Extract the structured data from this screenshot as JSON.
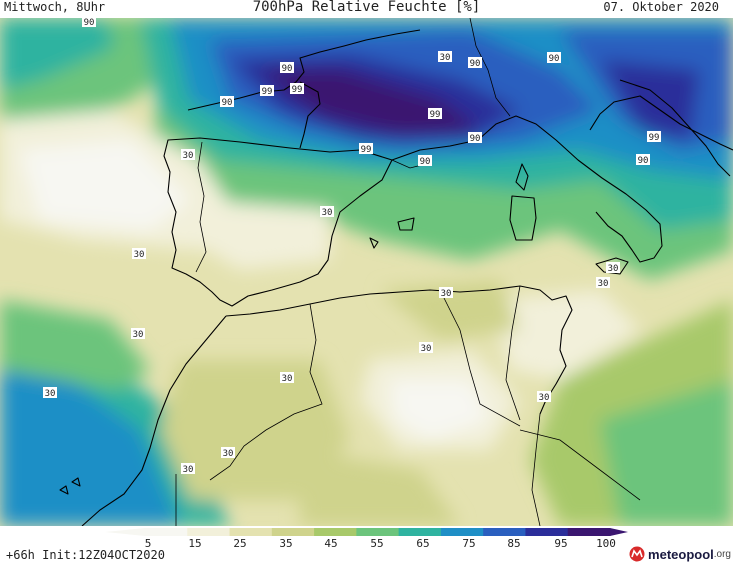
{
  "header": {
    "left": "Mittwoch, 8Uhr",
    "title": "700hPa Relative Feuchte [%]",
    "right": "07. Oktober 2020"
  },
  "colorbar": {
    "ticks": [
      "5",
      "15",
      "25",
      "35",
      "45",
      "55",
      "65",
      "75",
      "85",
      "95",
      "100"
    ],
    "colors": [
      "#f7f7f2",
      "#f2f0da",
      "#e4e2b0",
      "#cfd38c",
      "#a8c96a",
      "#6cc47c",
      "#2fb3a0",
      "#1f8fc6",
      "#2a5fbf",
      "#2b2e9a",
      "#3b1670"
    ]
  },
  "footer": {
    "run_info": "+66h Init:12Z04OCT2020",
    "logo_text": "meteopool",
    "logo_suffix": ".org"
  },
  "contour_labels": [
    {
      "id": "lbl-01",
      "text": "90"
    },
    {
      "id": "lbl-02",
      "text": "30"
    },
    {
      "id": "lbl-03",
      "text": "90"
    },
    {
      "id": "lbl-04",
      "text": "90"
    },
    {
      "id": "lbl-05",
      "text": "99"
    },
    {
      "id": "lbl-06",
      "text": "99"
    },
    {
      "id": "lbl-07",
      "text": "90"
    },
    {
      "id": "lbl-08",
      "text": "90"
    },
    {
      "id": "lbl-09",
      "text": "99"
    },
    {
      "id": "lbl-10",
      "text": "90"
    },
    {
      "id": "lbl-11",
      "text": "99"
    },
    {
      "id": "lbl-12",
      "text": "90"
    },
    {
      "id": "lbl-13",
      "text": "99"
    },
    {
      "id": "lbl-14",
      "text": "90"
    },
    {
      "id": "lbl-15",
      "text": "30"
    },
    {
      "id": "lbl-16",
      "text": "30"
    },
    {
      "id": "lbl-17",
      "text": "30"
    },
    {
      "id": "lbl-18",
      "text": "30"
    },
    {
      "id": "lbl-19",
      "text": "30"
    },
    {
      "id": "lbl-20",
      "text": "30"
    },
    {
      "id": "lbl-21",
      "text": "30"
    },
    {
      "id": "lbl-22",
      "text": "30"
    },
    {
      "id": "lbl-23",
      "text": "30"
    },
    {
      "id": "lbl-24",
      "text": "30"
    },
    {
      "id": "lbl-25",
      "text": "30"
    },
    {
      "id": "lbl-26",
      "text": "30"
    },
    {
      "id": "lbl-27",
      "text": "30"
    }
  ]
}
